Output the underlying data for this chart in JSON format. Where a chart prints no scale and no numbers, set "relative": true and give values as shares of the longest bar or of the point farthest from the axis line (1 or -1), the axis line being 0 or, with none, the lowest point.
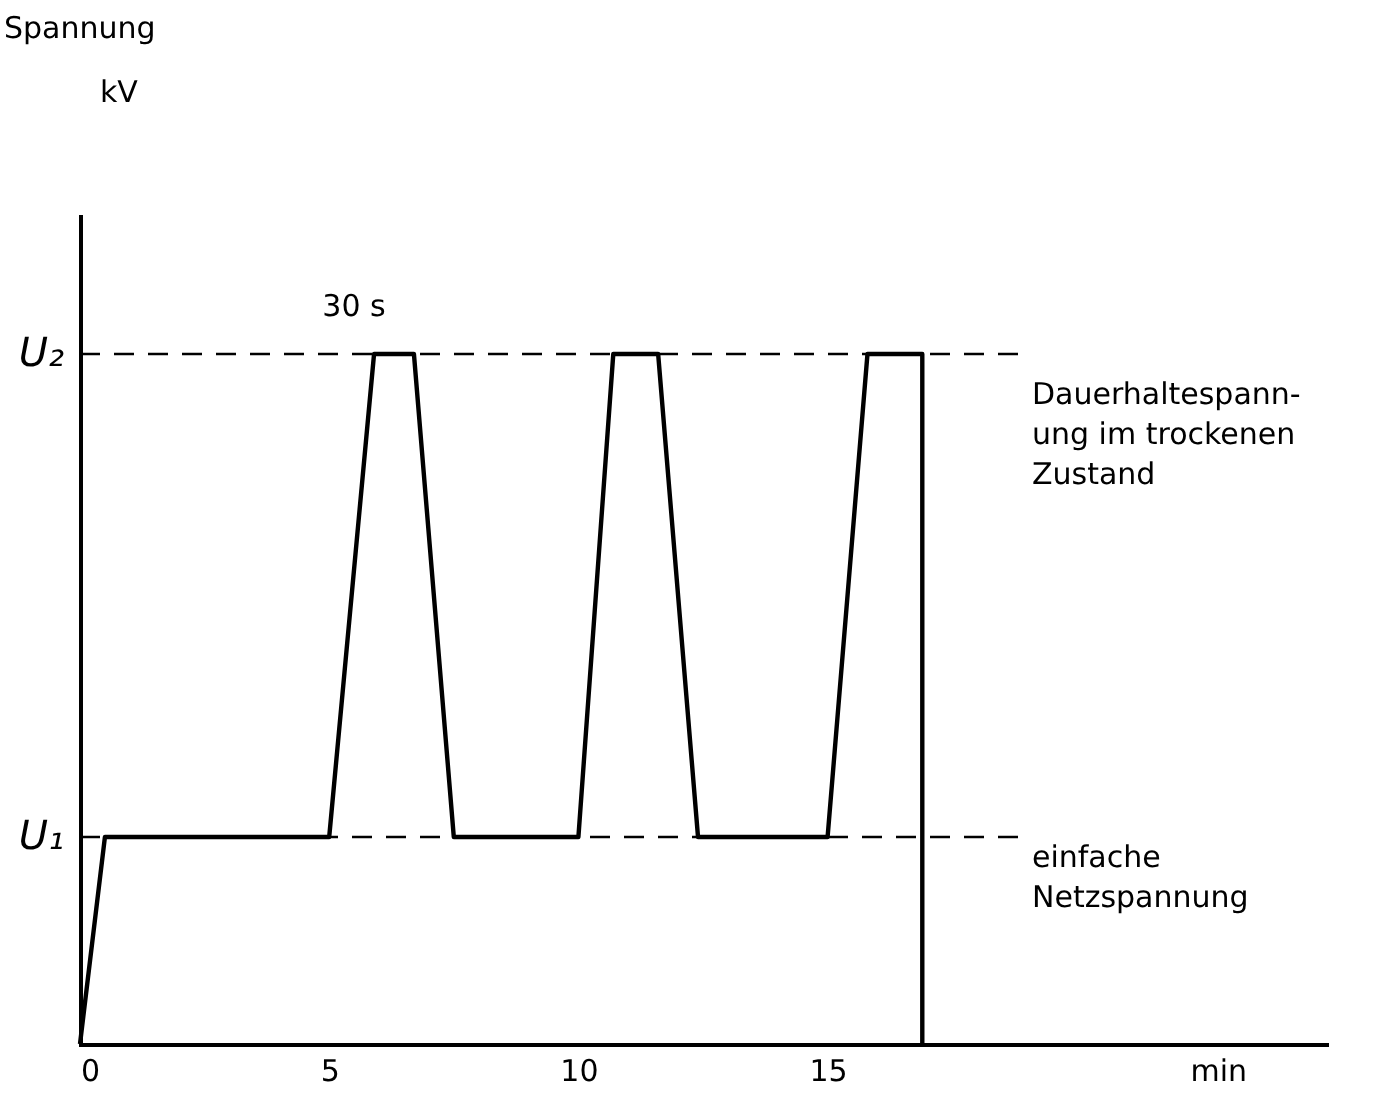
{
  "chart_data": {
    "type": "line",
    "relative": true,
    "title": "Spannung",
    "xlabel": "min",
    "x": [
      0,
      0.5,
      5,
      5.9,
      6.7,
      7.5,
      10,
      10.7,
      11.6,
      12.4,
      15,
      15.8,
      16.9,
      16.9
    ],
    "series": [
      {
        "color": "#000000",
        "values": [
          0,
          0.3,
          0.3,
          1,
          1,
          0.3,
          0.3,
          1,
          1,
          0.3,
          0.3,
          1,
          1,
          0
        ]
      }
    ],
    "xlim": [
      0,
      25
    ],
    "xticks": [
      0,
      5,
      10,
      15
    ],
    "grid": false,
    "marker": "none",
    "line_style": "solid",
    "ref_lines": [
      {
        "axis": "y",
        "value": 1,
        "label": "Dauerhaltespann-\nung im trockenen\nZustand",
        "line_style": "dashed"
      },
      {
        "axis": "y",
        "value": 0.3,
        "label": "einfache\nNetzspannung",
        "line_style": "dashed"
      }
    ],
    "annotations": [
      "kV",
      "U₂",
      "U₁",
      {
        "text": "30 s",
        "x": 6.3,
        "y": 1
      }
    ]
  }
}
